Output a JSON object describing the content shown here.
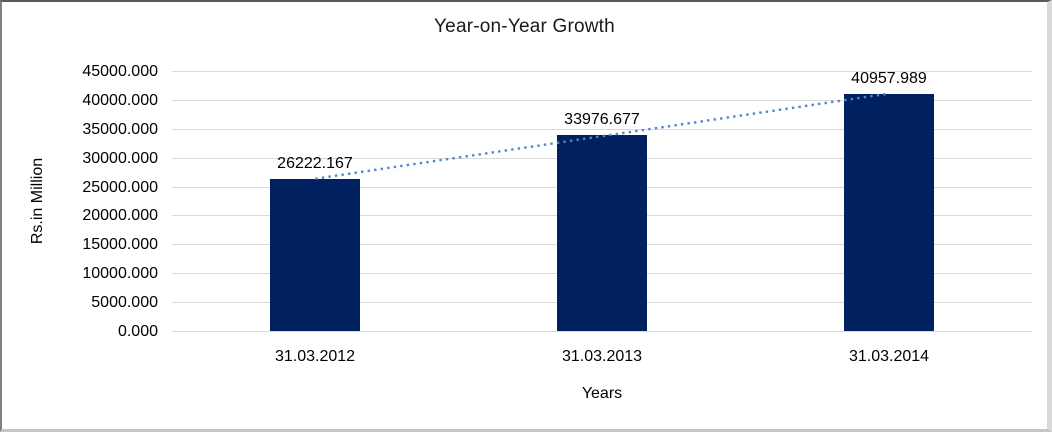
{
  "chart_data": {
    "type": "bar",
    "title": "Year-on-Year Growth",
    "xlabel": "Years",
    "ylabel": "Rs.in Million",
    "categories": [
      "31.03.2012",
      "31.03.2013",
      "31.03.2014"
    ],
    "values": [
      26222.167,
      33976.677,
      40957.989
    ],
    "data_labels": [
      "26222.167",
      "33976.677",
      "40957.989"
    ],
    "ylim": [
      0,
      45000
    ],
    "ytick_step": 5000,
    "ytick_labels": [
      "45000.000",
      "40000.000",
      "35000.000",
      "30000.000",
      "25000.000",
      "20000.000",
      "15000.000",
      "10000.000",
      "5000.000",
      "0.000"
    ],
    "grid": true,
    "legend": "none",
    "trendline": {
      "type": "linear",
      "style": "dotted"
    },
    "colors": {
      "bar": "#002060",
      "trendline": "#5585C8",
      "gridline": "#D9D9D9",
      "text": "#000000",
      "background": "#FFFFFF"
    }
  }
}
